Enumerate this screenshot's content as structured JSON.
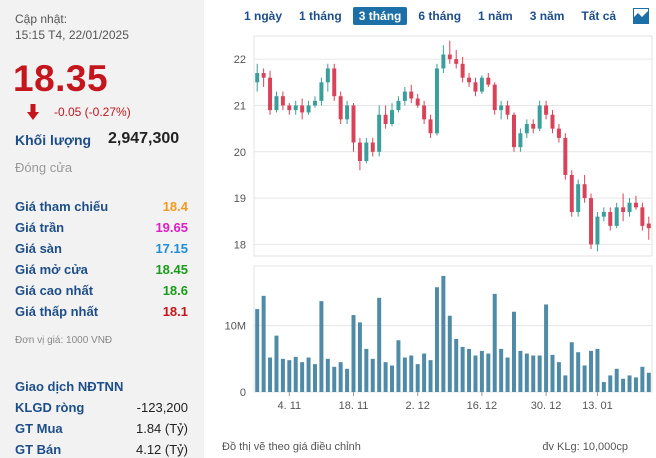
{
  "quote": {
    "updated_label": "Cập nhật:",
    "updated_time": "15:15 T4, 22/01/2025",
    "price": "18.35",
    "change": "-0.05 (-0.27%)",
    "volume_label": "Khối lượng",
    "volume_value": "2,947,300",
    "status": "Đóng cửa",
    "down_color": "#c4161c"
  },
  "stats": [
    {
      "label": "Giá tham chiếu",
      "value": "18.4",
      "color": "#f29a1e"
    },
    {
      "label": "Giá trần",
      "value": "19.65",
      "color": "#e21bc9"
    },
    {
      "label": "Giá sàn",
      "value": "17.15",
      "color": "#1d8fd6"
    },
    {
      "label": "Giá mở cửa",
      "value": "18.45",
      "color": "#1a9b1a"
    },
    {
      "label": "Giá cao nhất",
      "value": "18.6",
      "color": "#1a9b1a"
    },
    {
      "label": "Giá thấp nhất",
      "value": "18.1",
      "color": "#c4161c"
    }
  ],
  "unit_note": "Đơn vị giá: 1000 VNĐ",
  "foreign": {
    "title": "Giao dịch NĐTNN",
    "rows": [
      {
        "label": "KLGD ròng",
        "value": "-123,200"
      },
      {
        "label": "GT Mua",
        "value": "1.84 (Tỷ)"
      },
      {
        "label": "GT Bán",
        "value": "4.12 (Tỷ)"
      }
    ]
  },
  "tabs": [
    {
      "label": "1 ngày",
      "active": false
    },
    {
      "label": "1 tháng",
      "active": false
    },
    {
      "label": "3 tháng",
      "active": true
    },
    {
      "label": "6 tháng",
      "active": false
    },
    {
      "label": "1 năm",
      "active": false
    },
    {
      "label": "3 năm",
      "active": false
    },
    {
      "label": "Tất cả",
      "active": false
    }
  ],
  "chart_icon": "area-chart-icon",
  "footer": {
    "note": "Đồ thị vẽ theo giá điều chỉnh",
    "volume_unit": "đv KLg: 10,000cp"
  },
  "chart_data": {
    "type": "candlestick",
    "up_color": "#3a9e9b",
    "down_color": "#d9435a",
    "volume_color": "#4f8aa6",
    "price_ticks": [
      18,
      19,
      20,
      21,
      22
    ],
    "price_ylim": [
      17.75,
      22.5
    ],
    "volume_ticks": [
      {
        "v": 0,
        "label": "0"
      },
      {
        "v": 10,
        "label": "10M"
      }
    ],
    "volume_ylim": [
      0,
      19
    ],
    "x_tick_labels": [
      {
        "index": 5,
        "label": "4. 11"
      },
      {
        "index": 15,
        "label": "18. 11"
      },
      {
        "index": 25,
        "label": "2. 12"
      },
      {
        "index": 35,
        "label": "16. 12"
      },
      {
        "index": 45,
        "label": "30. 12"
      },
      {
        "index": 53,
        "label": "13. 01"
      }
    ],
    "candles": [
      {
        "o": 21.5,
        "h": 21.9,
        "l": 21.3,
        "c": 21.7,
        "v": 12.5
      },
      {
        "o": 21.7,
        "h": 21.8,
        "l": 21.4,
        "c": 21.6,
        "v": 14.5
      },
      {
        "o": 21.6,
        "h": 21.75,
        "l": 20.8,
        "c": 20.9,
        "v": 5.2
      },
      {
        "o": 20.9,
        "h": 21.3,
        "l": 20.85,
        "c": 21.2,
        "v": 8.5
      },
      {
        "o": 21.2,
        "h": 21.3,
        "l": 20.9,
        "c": 21.0,
        "v": 5.0
      },
      {
        "o": 21.0,
        "h": 21.05,
        "l": 20.8,
        "c": 20.9,
        "v": 4.8
      },
      {
        "o": 20.9,
        "h": 21.1,
        "l": 20.8,
        "c": 21.0,
        "v": 5.3
      },
      {
        "o": 21.0,
        "h": 21.15,
        "l": 20.7,
        "c": 20.85,
        "v": 4.5
      },
      {
        "o": 20.85,
        "h": 21.1,
        "l": 20.8,
        "c": 21.0,
        "v": 5.2
      },
      {
        "o": 21.0,
        "h": 21.2,
        "l": 20.95,
        "c": 21.1,
        "v": 4.2
      },
      {
        "o": 21.1,
        "h": 21.6,
        "l": 21.0,
        "c": 21.5,
        "v": 13.7
      },
      {
        "o": 21.5,
        "h": 21.9,
        "l": 21.3,
        "c": 21.8,
        "v": 5.0
      },
      {
        "o": 21.8,
        "h": 21.9,
        "l": 21.1,
        "c": 21.2,
        "v": 3.8
      },
      {
        "o": 21.2,
        "h": 21.3,
        "l": 20.6,
        "c": 20.7,
        "v": 4.5
      },
      {
        "o": 20.7,
        "h": 21.1,
        "l": 20.6,
        "c": 21.0,
        "v": 3.5
      },
      {
        "o": 21.0,
        "h": 21.05,
        "l": 20.0,
        "c": 20.2,
        "v": 11.6
      },
      {
        "o": 20.2,
        "h": 20.3,
        "l": 19.6,
        "c": 19.8,
        "v": 10.5
      },
      {
        "o": 19.8,
        "h": 20.3,
        "l": 19.75,
        "c": 20.2,
        "v": 6.5
      },
      {
        "o": 20.2,
        "h": 20.3,
        "l": 19.9,
        "c": 20.0,
        "v": 5.0
      },
      {
        "o": 20.0,
        "h": 21.0,
        "l": 19.9,
        "c": 20.8,
        "v": 14.2
      },
      {
        "o": 20.8,
        "h": 21.0,
        "l": 20.5,
        "c": 20.6,
        "v": 4.5
      },
      {
        "o": 20.6,
        "h": 21.05,
        "l": 20.55,
        "c": 20.9,
        "v": 4.0
      },
      {
        "o": 20.9,
        "h": 21.2,
        "l": 20.85,
        "c": 21.1,
        "v": 7.8
      },
      {
        "o": 21.1,
        "h": 21.4,
        "l": 21.0,
        "c": 21.3,
        "v": 5.2
      },
      {
        "o": 21.3,
        "h": 21.45,
        "l": 21.05,
        "c": 21.15,
        "v": 5.5
      },
      {
        "o": 21.15,
        "h": 21.25,
        "l": 20.95,
        "c": 21.0,
        "v": 4.2
      },
      {
        "o": 21.0,
        "h": 21.1,
        "l": 20.6,
        "c": 20.7,
        "v": 5.8
      },
      {
        "o": 20.7,
        "h": 20.8,
        "l": 20.3,
        "c": 20.4,
        "v": 4.8
      },
      {
        "o": 20.4,
        "h": 21.9,
        "l": 20.35,
        "c": 21.8,
        "v": 15.8
      },
      {
        "o": 21.8,
        "h": 22.3,
        "l": 21.7,
        "c": 22.1,
        "v": 17.5
      },
      {
        "o": 22.1,
        "h": 22.4,
        "l": 21.9,
        "c": 22.0,
        "v": 11.5
      },
      {
        "o": 22.0,
        "h": 22.2,
        "l": 21.8,
        "c": 21.9,
        "v": 8.0
      },
      {
        "o": 21.9,
        "h": 22.05,
        "l": 21.5,
        "c": 21.6,
        "v": 6.8
      },
      {
        "o": 21.6,
        "h": 21.7,
        "l": 21.4,
        "c": 21.5,
        "v": 6.5
      },
      {
        "o": 21.5,
        "h": 21.6,
        "l": 21.2,
        "c": 21.3,
        "v": 5.5
      },
      {
        "o": 21.3,
        "h": 21.65,
        "l": 21.25,
        "c": 21.6,
        "v": 6.2
      },
      {
        "o": 21.6,
        "h": 21.7,
        "l": 21.4,
        "c": 21.45,
        "v": 5.8
      },
      {
        "o": 21.45,
        "h": 21.5,
        "l": 20.8,
        "c": 20.9,
        "v": 14.8
      },
      {
        "o": 20.9,
        "h": 21.1,
        "l": 20.7,
        "c": 21.0,
        "v": 6.5
      },
      {
        "o": 21.0,
        "h": 21.1,
        "l": 20.7,
        "c": 20.8,
        "v": 5.2
      },
      {
        "o": 20.8,
        "h": 20.85,
        "l": 20.0,
        "c": 20.1,
        "v": 12.1
      },
      {
        "o": 20.1,
        "h": 20.5,
        "l": 20.0,
        "c": 20.4,
        "v": 6.2
      },
      {
        "o": 20.4,
        "h": 20.7,
        "l": 20.3,
        "c": 20.6,
        "v": 5.8
      },
      {
        "o": 20.6,
        "h": 20.7,
        "l": 20.4,
        "c": 20.5,
        "v": 5.5
      },
      {
        "o": 20.5,
        "h": 21.1,
        "l": 20.45,
        "c": 21.0,
        "v": 5.5
      },
      {
        "o": 21.0,
        "h": 21.1,
        "l": 20.7,
        "c": 20.8,
        "v": 13.2
      },
      {
        "o": 20.8,
        "h": 20.9,
        "l": 20.4,
        "c": 20.5,
        "v": 5.6
      },
      {
        "o": 20.5,
        "h": 20.6,
        "l": 20.2,
        "c": 20.3,
        "v": 4.5
      },
      {
        "o": 20.3,
        "h": 20.4,
        "l": 19.4,
        "c": 19.5,
        "v": 2.5
      },
      {
        "o": 19.5,
        "h": 19.6,
        "l": 18.6,
        "c": 18.7,
        "v": 7.5
      },
      {
        "o": 18.7,
        "h": 19.4,
        "l": 18.6,
        "c": 19.3,
        "v": 6.0
      },
      {
        "o": 19.3,
        "h": 19.5,
        "l": 18.9,
        "c": 19.0,
        "v": 4.0
      },
      {
        "o": 19.0,
        "h": 19.1,
        "l": 17.9,
        "c": 18.0,
        "v": 6.2
      },
      {
        "o": 18.0,
        "h": 18.7,
        "l": 17.85,
        "c": 18.6,
        "v": 6.5
      },
      {
        "o": 18.6,
        "h": 18.8,
        "l": 18.5,
        "c": 18.7,
        "v": 1.5
      },
      {
        "o": 18.7,
        "h": 18.8,
        "l": 18.3,
        "c": 18.4,
        "v": 2.5
      },
      {
        "o": 18.4,
        "h": 18.9,
        "l": 18.35,
        "c": 18.8,
        "v": 3.5
      },
      {
        "o": 18.8,
        "h": 19.1,
        "l": 18.5,
        "c": 18.7,
        "v": 2.0
      },
      {
        "o": 18.7,
        "h": 19.0,
        "l": 18.6,
        "c": 18.9,
        "v": 2.5
      },
      {
        "o": 18.9,
        "h": 19.05,
        "l": 18.75,
        "c": 18.8,
        "v": 2.2
      },
      {
        "o": 18.8,
        "h": 18.9,
        "l": 18.3,
        "c": 18.4,
        "v": 3.8
      },
      {
        "o": 18.45,
        "h": 18.6,
        "l": 18.1,
        "c": 18.35,
        "v": 2.9
      }
    ]
  }
}
